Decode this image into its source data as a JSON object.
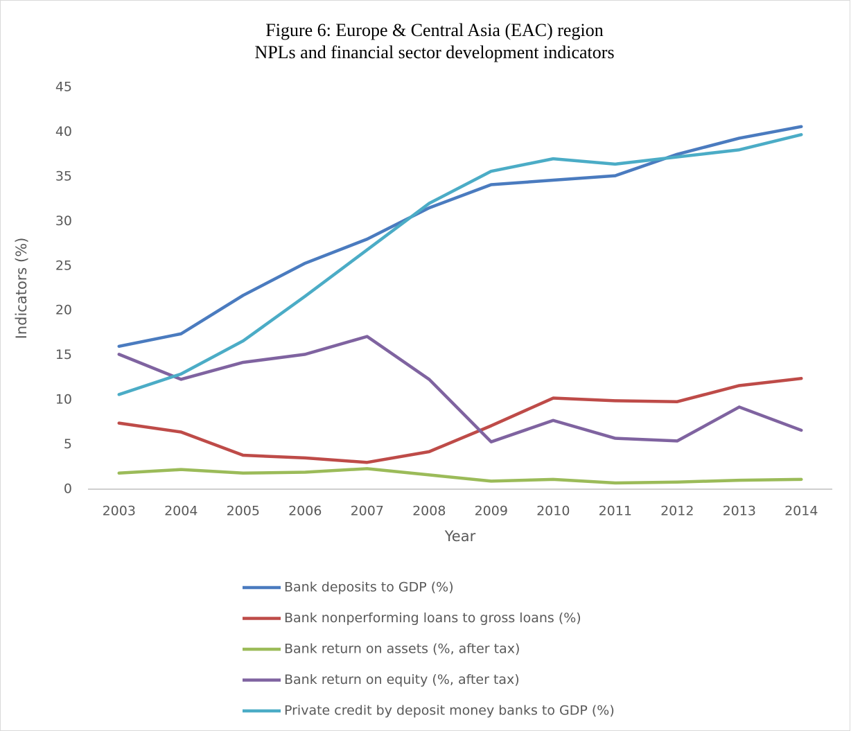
{
  "chart_data": {
    "type": "line",
    "title": [
      "Figure 6: Europe & Central Asia (EAC) region",
      "NPLs and financial sector development indicators"
    ],
    "x_label": "Year",
    "y_label": "Indicators (%)",
    "categories": [
      "2003",
      "2004",
      "2005",
      "2006",
      "2007",
      "2008",
      "2009",
      "2010",
      "2011",
      "2012",
      "2013",
      "2014"
    ],
    "series": [
      {
        "name": "Bank deposits to GDP (%)",
        "color": "#4a7bbf",
        "values": [
          16.0,
          17.4,
          21.7,
          25.3,
          28.0,
          31.5,
          34.1,
          34.6,
          35.1,
          37.5,
          39.3,
          40.6
        ]
      },
      {
        "name": "Bank nonperforming loans to gross loans (%)",
        "color": "#be4b48",
        "values": [
          7.4,
          6.4,
          3.8,
          3.5,
          3.0,
          4.2,
          7.1,
          10.2,
          9.9,
          9.8,
          11.6,
          12.4
        ]
      },
      {
        "name": "Bank return on assets (%, after tax)",
        "color": "#9bbb59",
        "values": [
          1.8,
          2.2,
          1.8,
          1.9,
          2.3,
          1.6,
          0.9,
          1.1,
          0.7,
          0.8,
          1.0,
          1.1
        ]
      },
      {
        "name": "Bank return on equity (%, after tax)",
        "color": "#7f63a0",
        "values": [
          15.1,
          12.3,
          14.2,
          15.1,
          17.1,
          12.3,
          5.3,
          7.7,
          5.7,
          5.4,
          9.2,
          6.6
        ]
      },
      {
        "name": "Private credit by deposit money banks to GDP (%)",
        "color": "#4bacc6",
        "values": [
          10.6,
          12.9,
          16.6,
          21.6,
          26.8,
          32.0,
          35.6,
          37.0,
          36.4,
          37.2,
          38.0,
          39.7
        ]
      }
    ],
    "ylim": [
      0,
      45
    ],
    "yticks": [
      0,
      5,
      10,
      15,
      20,
      25,
      30,
      35,
      40,
      45
    ],
    "grid": false,
    "legend": "bottom"
  }
}
